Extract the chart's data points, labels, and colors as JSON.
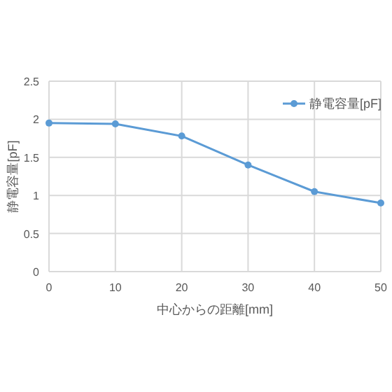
{
  "chart_data": {
    "type": "line",
    "xlabel": "中心からの距離[mm]",
    "ylabel": "静電容量[pF]",
    "x": [
      0,
      10,
      20,
      30,
      40,
      50
    ],
    "series": [
      {
        "name": "静電容量[pF]",
        "color": "#5b9bd5",
        "values": [
          1.95,
          1.94,
          1.78,
          1.4,
          1.05,
          0.9
        ]
      }
    ],
    "xlim": [
      0,
      50
    ],
    "xticks": [
      0,
      10,
      20,
      30,
      40,
      50
    ],
    "ylim": [
      0,
      2.5
    ],
    "yticks": [
      0,
      0.5,
      1,
      1.5,
      2,
      2.5
    ],
    "grid": true,
    "legend": "top right",
    "marker": "circle",
    "line_style": "solid"
  }
}
